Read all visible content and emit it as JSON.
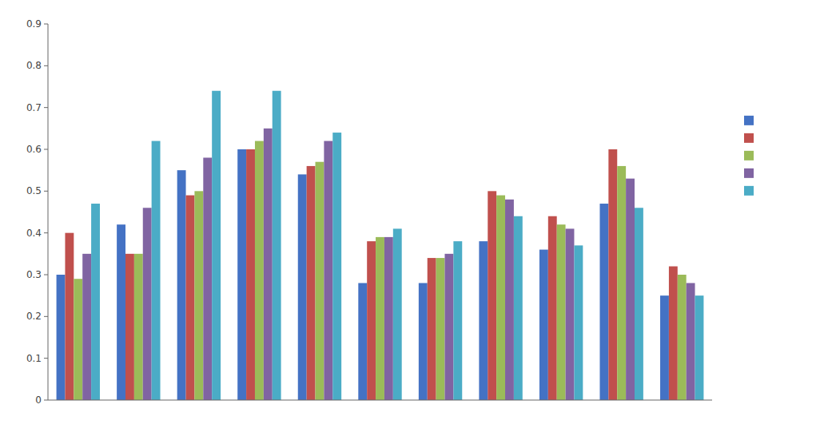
{
  "chart_data": {
    "type": "bar",
    "categories": [
      null,
      null,
      null,
      null,
      null,
      null,
      null,
      null,
      null,
      null,
      null
    ],
    "series": [
      {
        "color": "#4472c4",
        "values": [
          0.3,
          0.42,
          0.55,
          0.6,
          0.54,
          0.28,
          0.28,
          0.38,
          0.36,
          0.47,
          0.25
        ]
      },
      {
        "color": "#c0504d",
        "values": [
          0.4,
          0.35,
          0.49,
          0.6,
          0.56,
          0.38,
          0.34,
          0.5,
          0.44,
          0.6,
          0.32
        ]
      },
      {
        "color": "#9bbb59",
        "values": [
          0.29,
          0.35,
          0.5,
          0.62,
          0.57,
          0.39,
          0.34,
          0.49,
          0.42,
          0.56,
          0.3
        ]
      },
      {
        "color": "#8064a2",
        "values": [
          0.35,
          0.46,
          0.58,
          0.65,
          0.62,
          0.39,
          0.35,
          0.48,
          0.41,
          0.53,
          0.28
        ]
      },
      {
        "color": "#4bacc6",
        "values": [
          0.47,
          0.62,
          0.74,
          0.74,
          0.64,
          0.41,
          0.38,
          0.44,
          0.37,
          0.46,
          0.25
        ]
      }
    ],
    "ylim": [
      0,
      0.9
    ],
    "yticks": [
      0,
      0.1,
      0.2,
      0.3,
      0.4,
      0.5,
      0.6,
      0.7,
      0.8,
      0.9
    ],
    "grid": false,
    "legend": "right"
  }
}
